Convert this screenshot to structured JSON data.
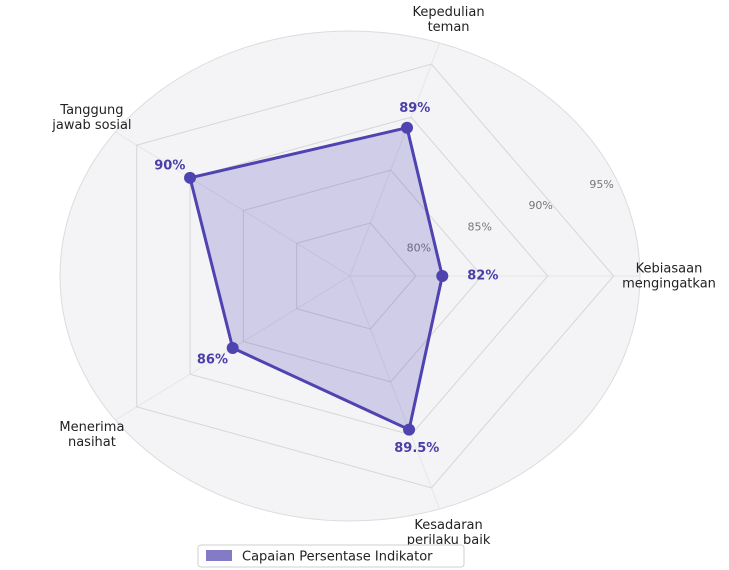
{
  "chart_data": {
    "type": "radar",
    "categories": [
      "Kebiasaan\nmengingatkan",
      "Kepedulian\nteman",
      "Tanggung\njawab sosial",
      "Menerima\nnasihat",
      "Kesadaran\nperilaku baik"
    ],
    "series": [
      {
        "name": "Capaian Persentase Indikator",
        "color": "#4f43b0",
        "values": [
          82,
          89,
          90,
          86,
          89.5
        ],
        "value_labels": [
          "82%",
          "89%",
          "90%",
          "86%",
          "89.5%"
        ]
      }
    ],
    "ylim": [
      75,
      97
    ],
    "yticks": [
      {
        "value": 80,
        "label": "80%"
      },
      {
        "value": 85,
        "label": "85%"
      },
      {
        "value": 90,
        "label": "90%"
      },
      {
        "value": 95,
        "label": "95%"
      }
    ],
    "grid": true,
    "legend": "bottom"
  }
}
